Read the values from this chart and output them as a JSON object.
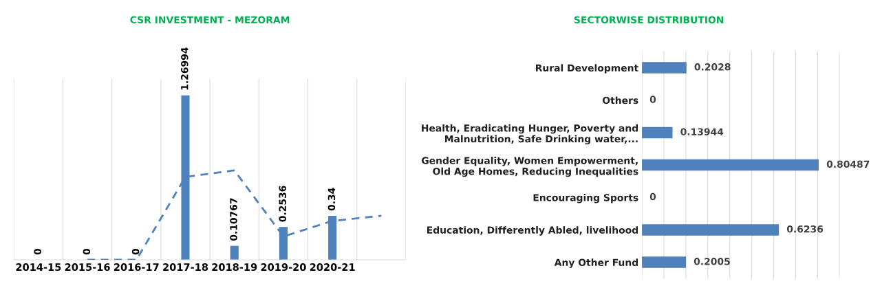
{
  "chart_data": [
    {
      "type": "bar",
      "title": "CSR INVESTMENT - MEZORAM",
      "categories": [
        "2014-15",
        "2015-16",
        "2016-17",
        "2017-18",
        "2018-19",
        "2019-20",
        "2020-21",
        null
      ],
      "grid": "x",
      "tick_labels": "x",
      "series": [
        {
          "type": "bar",
          "color": "#4f81bd",
          "values": [
            0,
            0,
            0,
            1.26994,
            0.10767,
            0.2536,
            0.34,
            null
          ],
          "value_labels": [
            "0",
            "0",
            "0",
            "1.26994",
            "0.10767",
            "0.2536",
            "0.34",
            null
          ]
        },
        {
          "type": "line",
          "color": "#4f81bd",
          "line_style": "dashed",
          "marker": "none",
          "values": [
            null,
            0,
            0,
            0.64,
            0.69,
            0.18,
            0.3,
            0.34
          ]
        }
      ]
    },
    {
      "type": "bar",
      "orientation": "horizontal",
      "title": "SECTORWISE DISTRIBUTION",
      "categories": [
        "Rural Development",
        "Others",
        "Health, Eradicating Hunger, Poverty and\nMalnutrition, Safe Drinking water,...",
        "Gender Equality, Women Empowerment,\nOld Age Homes, Reducing Inequalities",
        "Encouraging Sports",
        "Education, Differently Abled, livelihood",
        "Any Other Fund"
      ],
      "values": [
        0.2028,
        0,
        0.13944,
        0.80487,
        0,
        0.6236,
        0.2005
      ],
      "color": "#4f81bd",
      "data_labels": true,
      "xlim": [
        0,
        0.9
      ],
      "xticks": [
        {
          "value": 0,
          "label": null
        },
        {
          "value": 0.1,
          "label": null
        },
        {
          "value": 0.2,
          "label": null
        },
        {
          "value": 0.3,
          "label": null
        },
        {
          "value": 0.4,
          "label": null
        },
        {
          "value": 0.5,
          "label": null
        },
        {
          "value": 0.6,
          "label": null
        },
        {
          "value": 0.7,
          "label": null
        },
        {
          "value": 0.8,
          "label": null
        },
        {
          "value": 0.9,
          "label": null
        }
      ],
      "grid": "x",
      "tick_labels": "y"
    }
  ]
}
